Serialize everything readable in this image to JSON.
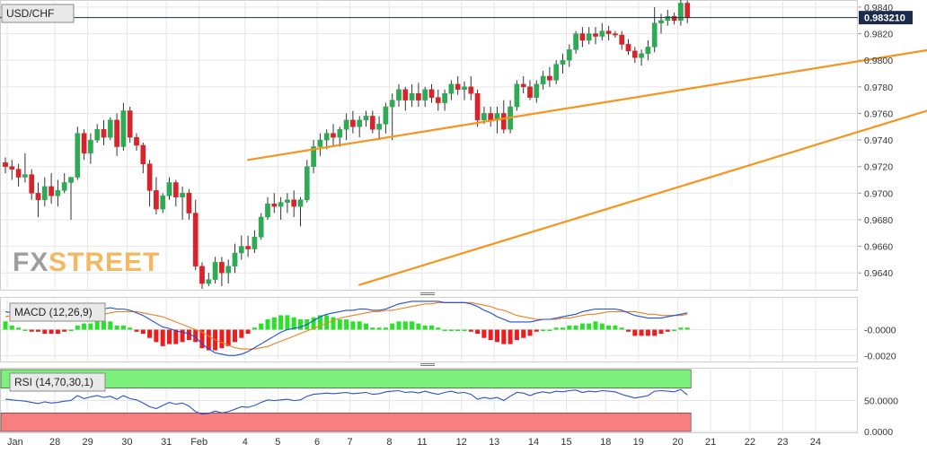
{
  "symbol": "USD/CHF",
  "logo": {
    "part1": "FX",
    "part2": "STREET"
  },
  "colors": {
    "bull": "#2eaa54",
    "bear": "#d9232a",
    "trendline": "#f7941d",
    "macd_line": "#1f4fd6",
    "signal_line": "#f07f1d",
    "hist_pos": "#29e229",
    "hist_neg": "#ee1c1c",
    "rsi_line": "#2a52c9",
    "rsi_overbought": "#7cf07a",
    "rsi_oversold": "#f77f7f",
    "last_price_bg": "#1c2b4b",
    "grid": "#e6e6e6"
  },
  "chart_data": [
    {
      "type": "candlestick",
      "title": "USD/CHF",
      "ylim": [
        0.9628,
        0.9844
      ],
      "yticks": [
        "0.9840",
        "0.9820",
        "0.9800",
        "0.9780",
        "0.9760",
        "0.9740",
        "0.9720",
        "0.9700",
        "0.9680",
        "0.9660",
        "0.9640"
      ],
      "last_price": "0.983210",
      "x_tick_labels": [
        "Jan",
        "28",
        "29",
        "30",
        "31",
        "Feb",
        "4",
        "5",
        "6",
        "7",
        "8",
        "11",
        "12",
        "13",
        "14",
        "15",
        "18",
        "19",
        "20",
        "21",
        "22",
        "23",
        "24"
      ],
      "candles": [
        [
          0.9723,
          0.9727,
          0.9715,
          0.972
        ],
        [
          0.972,
          0.9725,
          0.971,
          0.9718
        ],
        [
          0.9718,
          0.9722,
          0.9705,
          0.9712
        ],
        [
          0.9712,
          0.973,
          0.9708,
          0.9714
        ],
        [
          0.9714,
          0.9718,
          0.9695,
          0.97
        ],
        [
          0.97,
          0.9708,
          0.9682,
          0.9695
        ],
        [
          0.9695,
          0.9712,
          0.969,
          0.9705
        ],
        [
          0.9705,
          0.9715,
          0.9692,
          0.9698
        ],
        [
          0.9698,
          0.971,
          0.969,
          0.9702
        ],
        [
          0.9702,
          0.9715,
          0.97,
          0.9708
        ],
        [
          0.9708,
          0.9712,
          0.968,
          0.9712
        ],
        [
          0.9712,
          0.975,
          0.971,
          0.9745
        ],
        [
          0.9745,
          0.9748,
          0.9725,
          0.973
        ],
        [
          0.973,
          0.9745,
          0.9722,
          0.974
        ],
        [
          0.974,
          0.9752,
          0.9738,
          0.9748
        ],
        [
          0.9748,
          0.9755,
          0.9736,
          0.9742
        ],
        [
          0.9742,
          0.9757,
          0.974,
          0.9755
        ],
        [
          0.9755,
          0.976,
          0.9728,
          0.9735
        ],
        [
          0.9735,
          0.9768,
          0.9732,
          0.9762
        ],
        [
          0.9762,
          0.9765,
          0.9738,
          0.9742
        ],
        [
          0.9742,
          0.9745,
          0.9732,
          0.9736
        ],
        [
          0.9736,
          0.9738,
          0.9715,
          0.9722
        ],
        [
          0.9722,
          0.9725,
          0.969,
          0.9702
        ],
        [
          0.9702,
          0.9712,
          0.9684,
          0.9688
        ],
        [
          0.9688,
          0.97,
          0.9685,
          0.9698
        ],
        [
          0.9698,
          0.9712,
          0.9695,
          0.9708
        ],
        [
          0.9708,
          0.971,
          0.969,
          0.9697
        ],
        [
          0.9697,
          0.9705,
          0.968,
          0.97
        ],
        [
          0.97,
          0.9703,
          0.968,
          0.9685
        ],
        [
          0.9685,
          0.9695,
          0.9642,
          0.9645
        ],
        [
          0.9645,
          0.9648,
          0.9628,
          0.9632
        ],
        [
          0.9632,
          0.964,
          0.963,
          0.9635
        ],
        [
          0.9635,
          0.9652,
          0.9632,
          0.9648
        ],
        [
          0.9648,
          0.9652,
          0.963,
          0.964
        ],
        [
          0.964,
          0.965,
          0.9632,
          0.9645
        ],
        [
          0.9645,
          0.9662,
          0.964,
          0.9655
        ],
        [
          0.9655,
          0.9668,
          0.965,
          0.966
        ],
        [
          0.966,
          0.9668,
          0.9652,
          0.9658
        ],
        [
          0.9658,
          0.9672,
          0.9655,
          0.9667
        ],
        [
          0.9667,
          0.9685,
          0.9665,
          0.9682
        ],
        [
          0.9682,
          0.9697,
          0.968,
          0.9692
        ],
        [
          0.9692,
          0.97,
          0.9685,
          0.969
        ],
        [
          0.969,
          0.9697,
          0.968,
          0.9693
        ],
        [
          0.9693,
          0.97,
          0.9685,
          0.9695
        ],
        [
          0.9695,
          0.9702,
          0.9682,
          0.969
        ],
        [
          0.969,
          0.9697,
          0.9675,
          0.9695
        ],
        [
          0.9695,
          0.9725,
          0.9693,
          0.972
        ],
        [
          0.972,
          0.974,
          0.9715,
          0.9735
        ],
        [
          0.9735,
          0.9745,
          0.9728,
          0.974
        ],
        [
          0.974,
          0.9748,
          0.9733,
          0.9745
        ],
        [
          0.9745,
          0.9752,
          0.9735,
          0.9742
        ],
        [
          0.9742,
          0.975,
          0.9735,
          0.9748
        ],
        [
          0.9748,
          0.976,
          0.974,
          0.9755
        ],
        [
          0.9755,
          0.9762,
          0.9745,
          0.975
        ],
        [
          0.975,
          0.9758,
          0.9742,
          0.9755
        ],
        [
          0.9755,
          0.9762,
          0.975,
          0.9758
        ],
        [
          0.9758,
          0.9762,
          0.9745,
          0.9748
        ],
        [
          0.9748,
          0.9758,
          0.974,
          0.9752
        ],
        [
          0.9752,
          0.9768,
          0.9745,
          0.9765
        ],
        [
          0.9765,
          0.9775,
          0.974,
          0.977
        ],
        [
          0.977,
          0.9782,
          0.9765,
          0.9778
        ],
        [
          0.9778,
          0.978,
          0.9762,
          0.977
        ],
        [
          0.977,
          0.9782,
          0.9765,
          0.9775
        ],
        [
          0.9775,
          0.9783,
          0.9765,
          0.977
        ],
        [
          0.977,
          0.978,
          0.9765,
          0.9778
        ],
        [
          0.9778,
          0.9782,
          0.9768,
          0.9772
        ],
        [
          0.9772,
          0.9778,
          0.9762,
          0.9768
        ],
        [
          0.9768,
          0.9778,
          0.9762,
          0.9775
        ],
        [
          0.9775,
          0.9785,
          0.977,
          0.9782
        ],
        [
          0.9782,
          0.9788,
          0.9774,
          0.9778
        ],
        [
          0.9778,
          0.9784,
          0.977,
          0.978
        ],
        [
          0.978,
          0.9788,
          0.977,
          0.9775
        ],
        [
          0.9775,
          0.9778,
          0.975,
          0.9755
        ],
        [
          0.9755,
          0.9765,
          0.9752,
          0.976
        ],
        [
          0.976,
          0.9765,
          0.975,
          0.9755
        ],
        [
          0.9755,
          0.9765,
          0.9745,
          0.976
        ],
        [
          0.976,
          0.977,
          0.9745,
          0.9748
        ],
        [
          0.9748,
          0.977,
          0.9745,
          0.9765
        ],
        [
          0.9765,
          0.9785,
          0.9762,
          0.9782
        ],
        [
          0.9782,
          0.9788,
          0.9775,
          0.978
        ],
        [
          0.978,
          0.9785,
          0.977,
          0.9772
        ],
        [
          0.9772,
          0.9785,
          0.9768,
          0.9782
        ],
        [
          0.9782,
          0.9792,
          0.9778,
          0.9788
        ],
        [
          0.9788,
          0.9795,
          0.978,
          0.9785
        ],
        [
          0.9785,
          0.98,
          0.9782,
          0.9797
        ],
        [
          0.9797,
          0.9805,
          0.979,
          0.98
        ],
        [
          0.98,
          0.9812,
          0.9795,
          0.9808
        ],
        [
          0.9808,
          0.9822,
          0.9805,
          0.982
        ],
        [
          0.982,
          0.9825,
          0.981,
          0.9815
        ],
        [
          0.9815,
          0.9825,
          0.9812,
          0.982
        ],
        [
          0.982,
          0.9825,
          0.9812,
          0.9818
        ],
        [
          0.9818,
          0.9828,
          0.9815,
          0.9822
        ],
        [
          0.9822,
          0.9826,
          0.9815,
          0.982
        ],
        [
          0.982,
          0.9822,
          0.9817,
          0.9819
        ],
        [
          0.9819,
          0.9822,
          0.9808,
          0.9812
        ],
        [
          0.9812,
          0.9816,
          0.9804,
          0.9807
        ],
        [
          0.9807,
          0.981,
          0.9798,
          0.9802
        ],
        [
          0.9802,
          0.9808,
          0.9796,
          0.9805
        ],
        [
          0.9805,
          0.9815,
          0.98,
          0.981
        ],
        [
          0.981,
          0.984,
          0.9806,
          0.9828
        ],
        [
          0.9828,
          0.9835,
          0.982,
          0.983
        ],
        [
          0.983,
          0.9838,
          0.9826,
          0.9833
        ],
        [
          0.9833,
          0.9836,
          0.9827,
          0.983
        ],
        [
          0.983,
          0.9847,
          0.9826,
          0.9843
        ],
        [
          0.9843,
          0.9845,
          0.9828,
          0.9832
        ]
      ],
      "trendlines": [
        {
          "name": "upper",
          "from": [
            37,
            0.9725
          ],
          "to": [
            200,
            0.9855
          ]
        },
        {
          "name": "lower",
          "from": [
            54,
            0.9631
          ],
          "to": [
            200,
            0.9852
          ]
        }
      ]
    },
    {
      "type": "macd",
      "label": "MACD (12,26,9)",
      "ylim": [
        -0.0024,
        0.0024
      ],
      "yticks": [
        "-0.0000",
        "-0.0020"
      ],
      "macd": [
        0.0014,
        0.0013,
        0.0012,
        0.0011,
        0.001,
        0.0009,
        0.0008,
        0.0007,
        0.0007,
        0.0008,
        0.0009,
        0.0011,
        0.0013,
        0.0014,
        0.0016,
        0.0016,
        0.0017,
        0.0016,
        0.0016,
        0.0015,
        0.0013,
        0.0011,
        0.0008,
        0.0005,
        0.0002,
        0.0001,
        -0.0001,
        -0.0002,
        -0.0003,
        -0.0006,
        -0.0011,
        -0.0015,
        -0.0018,
        -0.0019,
        -0.002,
        -0.002,
        -0.0019,
        -0.0017,
        -0.0014,
        -0.0011,
        -0.0008,
        -0.0005,
        -0.0002,
        0.0,
        0.0001,
        0.0002,
        0.0004,
        0.0007,
        0.001,
        0.0012,
        0.0013,
        0.0014,
        0.0015,
        0.0015,
        0.0016,
        0.0016,
        0.0015,
        0.0015,
        0.0016,
        0.0018,
        0.002,
        0.0021,
        0.0022,
        0.0022,
        0.0022,
        0.0022,
        0.0022,
        0.0021,
        0.0021,
        0.0021,
        0.0021,
        0.002,
        0.0018,
        0.0015,
        0.0013,
        0.001,
        0.0008,
        0.0006,
        0.0006,
        0.0006,
        0.0006,
        0.0007,
        0.0008,
        0.0008,
        0.0009,
        0.001,
        0.0011,
        0.0012,
        0.0014,
        0.0015,
        0.0016,
        0.0016,
        0.0016,
        0.0016,
        0.0015,
        0.0013,
        0.0011,
        0.001,
        0.0009,
        0.0009,
        0.0009,
        0.001,
        0.0011,
        0.0012,
        0.0013
      ],
      "signal": [
        0.001,
        0.0011,
        0.0011,
        0.0011,
        0.0011,
        0.001,
        0.001,
        0.0009,
        0.0009,
        0.0009,
        0.0009,
        0.0009,
        0.001,
        0.0011,
        0.0011,
        0.0012,
        0.0013,
        0.0014,
        0.0014,
        0.0014,
        0.0014,
        0.0013,
        0.0012,
        0.0011,
        0.001,
        0.0008,
        0.0006,
        0.0004,
        0.0002,
        0.0,
        -0.0002,
        -0.0005,
        -0.0008,
        -0.001,
        -0.0012,
        -0.0014,
        -0.0015,
        -0.0015,
        -0.0015,
        -0.0014,
        -0.0013,
        -0.0011,
        -0.0009,
        -0.0007,
        -0.0005,
        -0.0003,
        -0.0001,
        0.0001,
        0.0003,
        0.0005,
        0.0007,
        0.0009,
        0.001,
        0.0011,
        0.0012,
        0.0013,
        0.0014,
        0.0014,
        0.0015,
        0.0015,
        0.0016,
        0.0017,
        0.0018,
        0.0019,
        0.002,
        0.002,
        0.0021,
        0.0021,
        0.0021,
        0.0021,
        0.0021,
        0.0021,
        0.002,
        0.0019,
        0.0018,
        0.0016,
        0.0015,
        0.0013,
        0.0011,
        0.001,
        0.0009,
        0.0008,
        0.0008,
        0.0008,
        0.0008,
        0.0009,
        0.0009,
        0.001,
        0.0011,
        0.0012,
        0.0012,
        0.0013,
        0.0014,
        0.0014,
        0.0014,
        0.0014,
        0.0014,
        0.0013,
        0.0012,
        0.0012,
        0.0011,
        0.0011,
        0.0011,
        0.0011,
        0.0012
      ]
    },
    {
      "type": "rsi",
      "label": "RSI (14,70,30,1)",
      "ylim": [
        0,
        100
      ],
      "yticks": [
        "50.0000",
        "0.0000"
      ],
      "overbought": 70,
      "oversold": 30,
      "values": [
        52,
        51,
        50,
        49,
        47,
        45,
        48,
        46,
        47,
        49,
        50,
        58,
        53,
        56,
        58,
        55,
        57,
        52,
        58,
        53,
        51,
        46,
        40,
        37,
        42,
        47,
        44,
        46,
        41,
        32,
        28,
        29,
        33,
        30,
        32,
        36,
        40,
        39,
        42,
        47,
        51,
        50,
        51,
        52,
        50,
        51,
        57,
        60,
        61,
        62,
        61,
        62,
        63,
        61,
        62,
        63,
        60,
        61,
        64,
        65,
        66,
        63,
        64,
        62,
        65,
        62,
        60,
        63,
        65,
        62,
        63,
        60,
        52,
        55,
        53,
        55,
        50,
        57,
        63,
        62,
        58,
        62,
        64,
        62,
        65,
        64,
        66,
        67,
        63,
        65,
        64,
        66,
        65,
        64,
        60,
        57,
        54,
        56,
        58,
        65,
        66,
        65,
        64,
        68,
        59
      ]
    }
  ]
}
